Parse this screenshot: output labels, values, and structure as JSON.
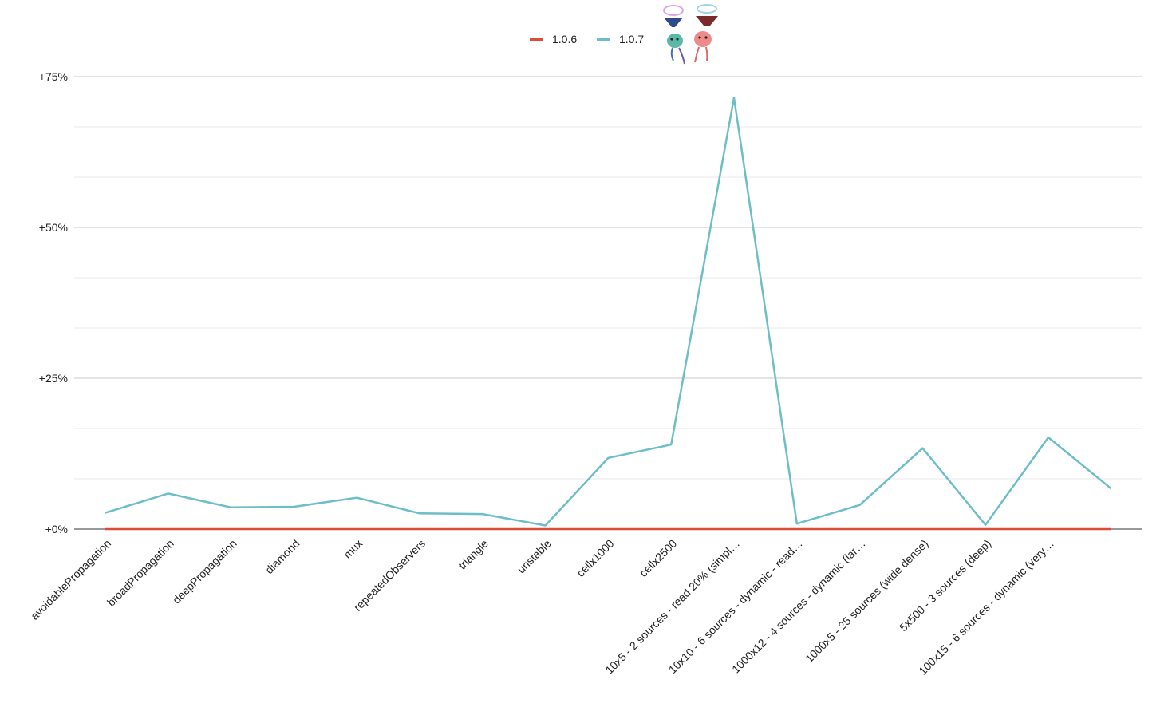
{
  "chart_data": {
    "type": "line",
    "title": "",
    "xlabel": "",
    "ylabel": "",
    "categories": [
      "avoidablePropagation",
      "broadPropagation",
      "deepPropagation",
      "diamond",
      "mux",
      "repeatedObservers",
      "triangle",
      "unstable",
      "cellx1000",
      "cellx2500",
      "10x5 - 2 sources - read 20% (simpl…",
      "10x10 - 6 sources - dynamic - read…",
      "1000x12 - 4 sources - dynamic (lar…",
      "1000x5 - 25 sources (wide dense)",
      "5x500 - 3 sources (deep)",
      "100x15 - 6 sources - dynamic (very…",
      ""
    ],
    "series": [
      {
        "name": "1.0.6",
        "color": "#dd4b39",
        "values": [
          0,
          0,
          0,
          0,
          0,
          0,
          0,
          0,
          0,
          0,
          0,
          0,
          0,
          0,
          0,
          0,
          0
        ]
      },
      {
        "name": "1.0.7",
        "color": "#6dbec7",
        "values": [
          2.7,
          5.9,
          3.6,
          3.7,
          5.2,
          2.6,
          2.5,
          0.6,
          11.8,
          14.0,
          71.5,
          0.9,
          4.0,
          13.4,
          0.7,
          15.2,
          6.7
        ]
      }
    ],
    "ylim": [
      0,
      75
    ],
    "yticks": [
      {
        "value": 0,
        "label": "+0%"
      },
      {
        "value": 25,
        "label": "+25%"
      },
      {
        "value": 50,
        "label": "+50%"
      },
      {
        "value": 75,
        "label": "+75%"
      }
    ],
    "minor_gridlines": [
      8.33,
      16.67,
      33.33,
      41.67,
      58.33,
      66.67
    ],
    "grid": true,
    "legend_position": "top-center",
    "legend_decoration": "mascot-illustration"
  }
}
